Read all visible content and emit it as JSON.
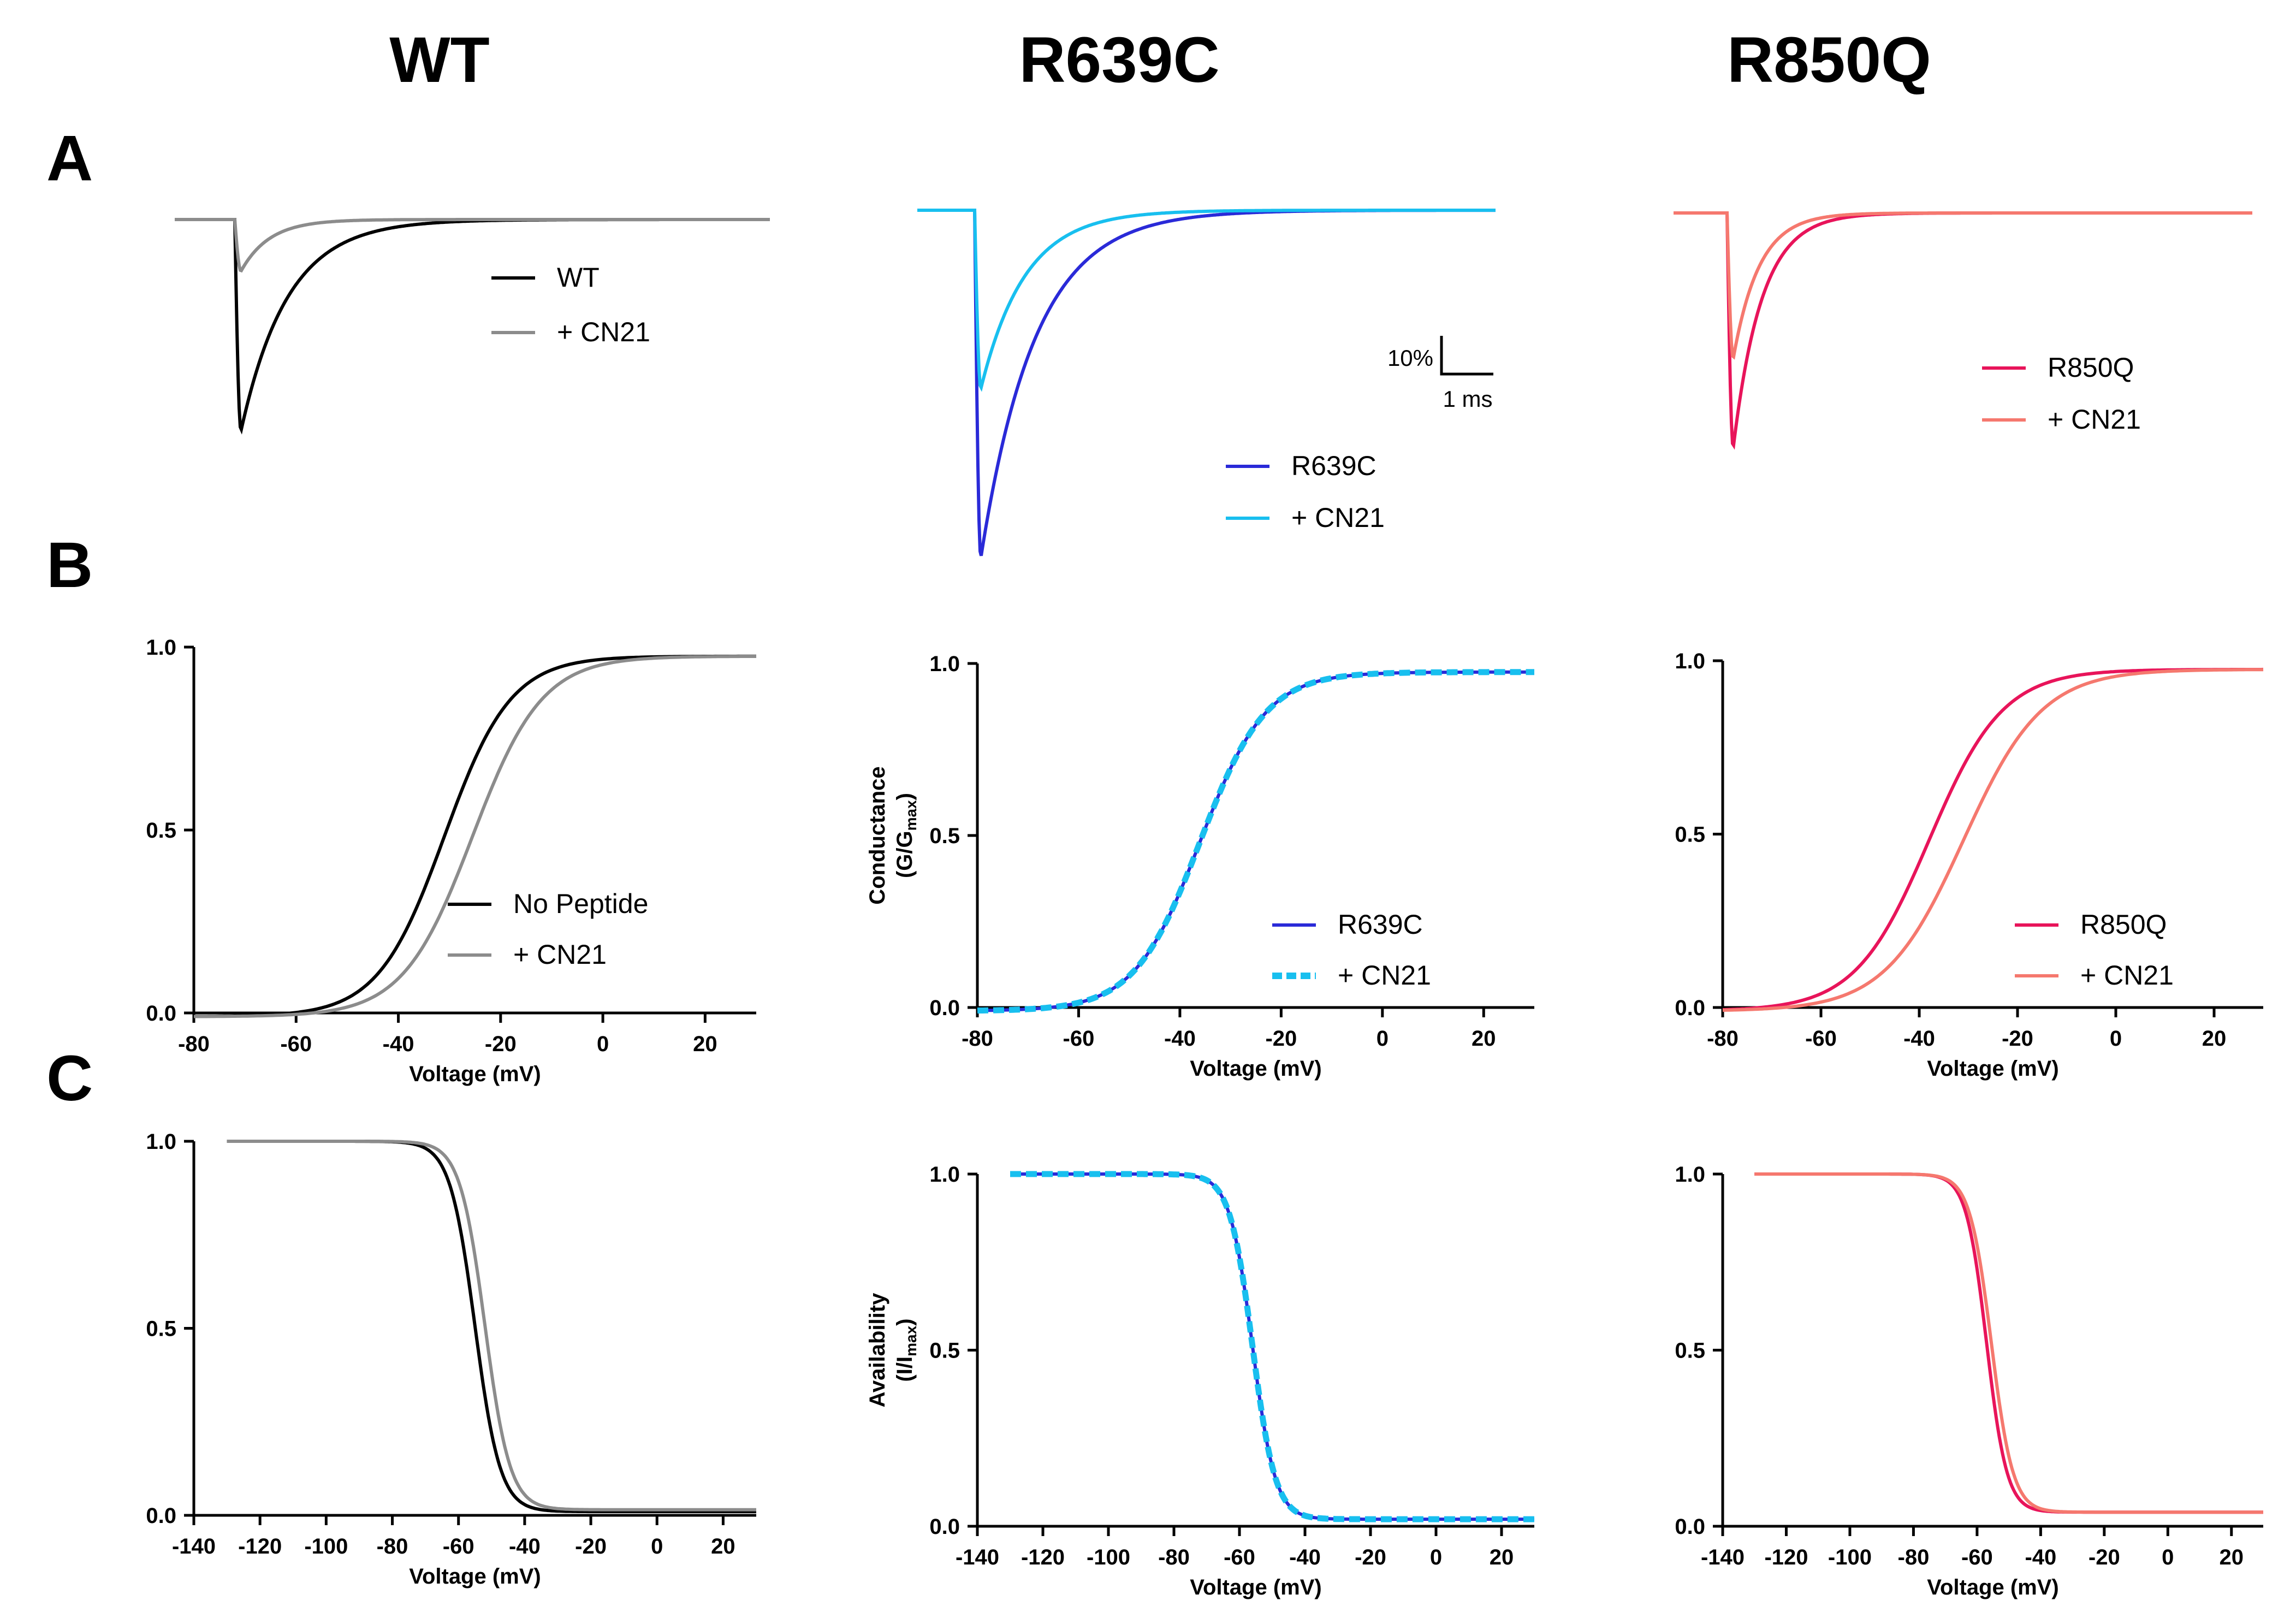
{
  "figure": {
    "column_titles": [
      "WT",
      "R639C",
      "R850Q"
    ],
    "row_labels": [
      "A",
      "B",
      "C"
    ],
    "scale_bar": {
      "y_label": "10%",
      "x_label": "1 ms"
    },
    "colors": {
      "wt": "#000000",
      "wt_cn21": "#8c8c8c",
      "r639c": "#2a2ad8",
      "r639c_cn21": "#18bfef",
      "r850q": "#e8145a",
      "r850q_cn21": "#f5786e"
    }
  },
  "chart_data": [
    {
      "id": "A-WT",
      "type": "line",
      "title": "WT",
      "legend": [
        {
          "label": "WT",
          "color": "#000000"
        },
        {
          "label": "+ CN21",
          "color": "#8c8c8c"
        }
      ],
      "series": [
        {
          "name": "WT",
          "peak_percent": 45,
          "tau_ms": 0.9,
          "color": "#000000"
        },
        {
          "name": "+ CN21",
          "peak_percent": 11,
          "tau_ms": 0.55,
          "color": "#8c8c8c"
        }
      ]
    },
    {
      "id": "A-R639C",
      "type": "line",
      "title": "R639C",
      "legend": [
        {
          "label": "R639C",
          "color": "#2a2ad8"
        },
        {
          "label": "+ CN21",
          "color": "#18bfef"
        }
      ],
      "series": [
        {
          "name": "R639C",
          "peak_percent": 74,
          "tau_ms": 1.05,
          "color": "#2a2ad8"
        },
        {
          "name": "+ CN21",
          "peak_percent": 38,
          "tau_ms": 0.85,
          "color": "#18bfef"
        }
      ]
    },
    {
      "id": "A-R850Q",
      "type": "line",
      "title": "R850Q",
      "legend": [
        {
          "label": "R850Q",
          "color": "#e8145a"
        },
        {
          "label": "+ CN21",
          "color": "#f5786e"
        }
      ],
      "series": [
        {
          "name": "R850Q",
          "peak_percent": 50,
          "tau_ms": 0.55,
          "color": "#e8145a"
        },
        {
          "name": "+ CN21",
          "peak_percent": 31,
          "tau_ms": 0.5,
          "color": "#f5786e"
        }
      ]
    },
    {
      "id": "B-WT",
      "type": "line",
      "xlabel": "Voltage (mV)",
      "ylabel": "",
      "xlim": [
        -80,
        30
      ],
      "ylim": [
        0,
        1
      ],
      "xticks": [
        "-80",
        "-60",
        "-40",
        "-20",
        "0",
        "20"
      ],
      "yticks": [
        "0.0",
        "0.5",
        "1.0"
      ],
      "legend": [
        {
          "label": "No Peptide",
          "color": "#000000"
        },
        {
          "label": "+ CN21",
          "color": "#8c8c8c"
        }
      ],
      "series": [
        {
          "name": "No Peptide",
          "v_half": -31,
          "k": 6.5,
          "kind": "activation",
          "color": "#000000"
        },
        {
          "name": "+ CN21",
          "v_half": -25.5,
          "k": 6.8,
          "kind": "activation",
          "color": "#8c8c8c"
        }
      ]
    },
    {
      "id": "B-R639C",
      "type": "line",
      "xlabel": "Voltage (mV)",
      "ylabel": "Conductance",
      "ylabel_sub": "(G/G",
      "ylabel_subscript": "max",
      "ylabel_close": ")",
      "xlim": [
        -80,
        30
      ],
      "ylim": [
        0,
        1
      ],
      "xticks": [
        "-80",
        "-60",
        "-40",
        "-20",
        "0",
        "20"
      ],
      "yticks": [
        "0.0",
        "0.5",
        "1.0"
      ],
      "legend": [
        {
          "label": "R639C",
          "color": "#2a2ad8"
        },
        {
          "label": "+  CN21",
          "color": "#18bfef",
          "dashed": true
        }
      ],
      "series": [
        {
          "name": "R639C",
          "v_half": -36,
          "k": 6.5,
          "kind": "activation",
          "color": "#2a2ad8"
        },
        {
          "name": "+ CN21",
          "v_half": -36,
          "k": 6.5,
          "kind": "activation",
          "color": "#18bfef",
          "dashed": true
        }
      ]
    },
    {
      "id": "B-R850Q",
      "type": "line",
      "xlabel": "Voltage (mV)",
      "ylabel": "",
      "xlim": [
        -80,
        30
      ],
      "ylim": [
        0,
        1
      ],
      "xticks": [
        "-80",
        "-60",
        "-40",
        "-20",
        "0",
        "20"
      ],
      "yticks": [
        "0.0",
        "0.5",
        "1.0"
      ],
      "legend": [
        {
          "label": "R850Q",
          "color": "#e8145a"
        },
        {
          "label": "+  CN21",
          "color": "#f5786e"
        }
      ],
      "series": [
        {
          "name": "R850Q",
          "v_half": -38,
          "k": 7.5,
          "kind": "activation",
          "color": "#e8145a"
        },
        {
          "name": "+ CN21",
          "v_half": -31,
          "k": 8,
          "kind": "activation",
          "color": "#f5786e"
        }
      ]
    },
    {
      "id": "C-WT",
      "type": "line",
      "xlabel": "Voltage (mV)",
      "ylabel": "",
      "xlim": [
        -140,
        30
      ],
      "ylim": [
        0,
        1
      ],
      "xticks": [
        "-140",
        "-120",
        "-100",
        "-80",
        "-60",
        "-40",
        "-20",
        "0",
        "20"
      ],
      "yticks": [
        "0.0",
        "0.5",
        "1.0"
      ],
      "series": [
        {
          "name": "WT",
          "v_half": -55,
          "k": 3.8,
          "floor": 0.01,
          "kind": "inactivation",
          "color": "#000000"
        },
        {
          "name": "+ CN21",
          "v_half": -52,
          "k": 3.8,
          "floor": 0.015,
          "kind": "inactivation",
          "color": "#8c8c8c"
        }
      ]
    },
    {
      "id": "C-R639C",
      "type": "line",
      "xlabel": "Voltage (mV)",
      "ylabel": "Availability",
      "ylabel_sub": "(I/I",
      "ylabel_subscript": "max",
      "ylabel_close": ")",
      "xlim": [
        -140,
        30
      ],
      "ylim": [
        0,
        1
      ],
      "xticks": [
        "-140",
        "-120",
        "-100",
        "-80",
        "-60",
        "-40",
        "-20",
        "0",
        "20"
      ],
      "yticks": [
        "0.0",
        "0.5",
        "1.0"
      ],
      "series": [
        {
          "name": "R639C",
          "v_half": -56,
          "k": 3.5,
          "floor": 0.02,
          "kind": "inactivation",
          "color": "#2a2ad8"
        },
        {
          "name": "+ CN21",
          "v_half": -56,
          "k": 3.5,
          "floor": 0.02,
          "kind": "inactivation",
          "color": "#18bfef",
          "dashed": true
        }
      ]
    },
    {
      "id": "C-R850Q",
      "type": "line",
      "xlabel": "Voltage (mV)",
      "ylabel": "",
      "xlim": [
        -140,
        30
      ],
      "ylim": [
        0,
        1
      ],
      "xticks": [
        "-140",
        "-120",
        "-100",
        "-80",
        "-60",
        "-40",
        "-20",
        "0",
        "20"
      ],
      "yticks": [
        "0.0",
        "0.5",
        "1.0"
      ],
      "series": [
        {
          "name": "R850Q",
          "v_half": -57,
          "k": 3.2,
          "floor": 0.04,
          "kind": "inactivation",
          "color": "#e8145a"
        },
        {
          "name": "+ CN21",
          "v_half": -55.5,
          "k": 3.4,
          "floor": 0.04,
          "kind": "inactivation",
          "color": "#f5786e"
        }
      ]
    }
  ]
}
